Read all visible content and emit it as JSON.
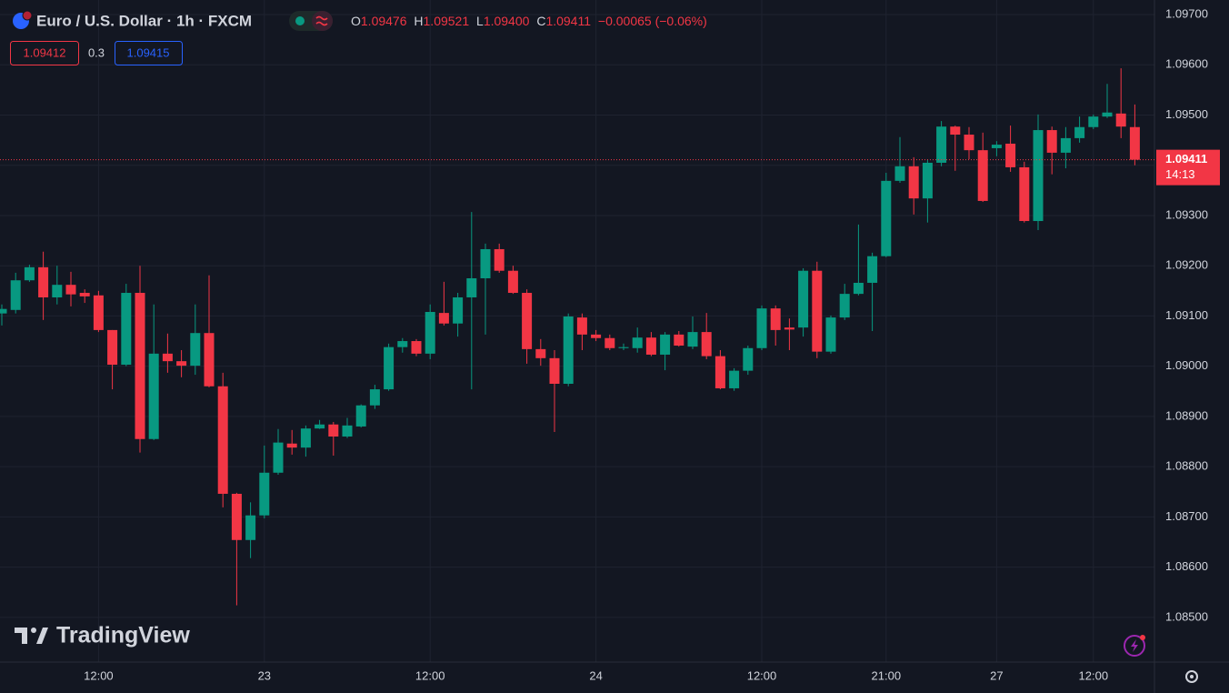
{
  "header": {
    "symbol": "Euro / U.S. Dollar · 1h · FXCM",
    "ohlc": [
      {
        "label": "O",
        "value": "1.09476"
      },
      {
        "label": "H",
        "value": "1.09521"
      },
      {
        "label": "L",
        "value": "1.09400"
      },
      {
        "label": "C",
        "value": "1.09411"
      }
    ],
    "change": "−0.00065 (−0.06%)"
  },
  "quote": {
    "bid": "1.09412",
    "spread": "0.3",
    "ask": "1.09415"
  },
  "watermark": "TradingView",
  "chart_data": {
    "type": "candlestick",
    "categories": [
      null,
      null,
      null,
      null,
      null,
      null,
      null,
      "12:00",
      null,
      null,
      null,
      null,
      null,
      null,
      null,
      null,
      null,
      null,
      null,
      "23",
      null,
      null,
      null,
      null,
      null,
      null,
      null,
      null,
      null,
      null,
      null,
      "12:00",
      null,
      null,
      null,
      null,
      null,
      null,
      null,
      null,
      null,
      null,
      null,
      "24",
      null,
      null,
      null,
      null,
      null,
      null,
      null,
      null,
      null,
      null,
      null,
      "12:00",
      null,
      null,
      null,
      null,
      null,
      null,
      null,
      null,
      "21:00",
      null,
      null,
      null,
      null,
      null,
      null,
      null,
      "27",
      null,
      null,
      null,
      null,
      null,
      null,
      "12:00",
      null,
      null,
      null
    ],
    "open": [
      1.09105,
      1.09112,
      1.09171,
      1.09197,
      1.09137,
      1.09162,
      1.09146,
      1.09141,
      1.09072,
      1.09003,
      1.09146,
      1.08855,
      1.09025,
      1.0901,
      1.09001,
      1.09066,
      1.0896,
      1.08746,
      1.08654,
      1.08703,
      1.08788,
      1.08846,
      1.08838,
      1.08876,
      1.08884,
      1.0886,
      1.0888,
      1.08922,
      1.08954,
      1.09038,
      1.0905,
      1.09025,
      1.09106,
      1.09085,
      1.09137,
      1.09175,
      1.09233,
      1.0919,
      1.09146,
      1.09034,
      1.09016,
      1.08965,
      1.09097,
      1.09063,
      1.09056,
      1.09036,
      1.09036,
      1.09057,
      1.09023,
      1.09063,
      1.09039,
      1.09068,
      1.0902,
      1.08956,
      1.08991,
      1.09036,
      1.09115,
      1.09077,
      1.09077,
      1.0919,
      1.09029,
      1.09097,
      1.09144,
      1.09166,
      1.09219,
      1.09369,
      1.09398,
      1.09334,
      1.09405,
      1.09477,
      1.09461,
      1.0943,
      1.09434,
      1.09443,
      1.09396,
      1.09289,
      1.0947,
      1.09425,
      1.09454,
      1.09476,
      1.09497,
      1.09503,
      1.09476
    ],
    "high": [
      1.09123,
      1.09186,
      1.09202,
      1.09228,
      1.092,
      1.09188,
      1.09153,
      1.0915,
      1.09072,
      1.09164,
      1.092,
      1.09123,
      1.09065,
      1.09032,
      1.09123,
      1.09181,
      1.08987,
      1.08748,
      1.08729,
      1.08842,
      1.08875,
      1.08873,
      1.08882,
      1.08893,
      1.08889,
      1.08897,
      1.08924,
      1.08963,
      1.09045,
      1.09056,
      1.09054,
      1.09123,
      1.09168,
      1.09146,
      1.09307,
      1.09244,
      1.09244,
      1.092,
      1.09153,
      1.09054,
      1.09032,
      1.09105,
      1.09105,
      1.09072,
      1.09063,
      1.09045,
      1.09077,
      1.09068,
      1.09068,
      1.0907,
      1.09099,
      1.09106,
      1.09032,
      1.08996,
      1.09041,
      1.09121,
      1.09121,
      1.09095,
      1.09195,
      1.09208,
      1.09101,
      1.09164,
      1.09282,
      1.09226,
      1.09385,
      1.09456,
      1.09416,
      1.09412,
      1.09488,
      1.09479,
      1.09476,
      1.09465,
      1.09448,
      1.09479,
      1.09407,
      1.09501,
      1.09477,
      1.09476,
      1.09497,
      1.09501,
      1.09562,
      1.09593,
      1.09521
    ],
    "low": [
      1.09081,
      1.09105,
      1.09168,
      1.09092,
      1.09123,
      1.09119,
      1.09126,
      1.09068,
      1.08954,
      1.09,
      1.08828,
      1.08853,
      1.08987,
      1.08978,
      1.08983,
      1.08958,
      1.08719,
      1.08524,
      1.08618,
      1.08697,
      1.08784,
      1.08824,
      1.0882,
      1.08875,
      1.08822,
      1.08857,
      1.08878,
      1.08915,
      1.08951,
      1.09027,
      1.0902,
      1.09014,
      1.09081,
      1.09059,
      1.08954,
      1.09063,
      1.09186,
      1.09144,
      1.09005,
      1.09001,
      1.08869,
      1.0896,
      1.09032,
      1.0905,
      1.09032,
      1.09032,
      1.09027,
      1.0902,
      1.08992,
      1.09039,
      1.09034,
      1.09014,
      1.08954,
      1.08951,
      1.08983,
      1.09032,
      1.09041,
      1.09032,
      1.09059,
      1.09016,
      1.09025,
      1.09092,
      1.09141,
      1.0907,
      1.09217,
      1.09365,
      1.09302,
      1.09286,
      1.09398,
      1.09389,
      1.09412,
      1.09327,
      1.09418,
      1.09387,
      1.09286,
      1.09271,
      1.09382,
      1.09394,
      1.09445,
      1.09472,
      1.09494,
      1.09454,
      1.094
    ],
    "close": [
      1.09114,
      1.09171,
      1.09197,
      1.09137,
      1.09162,
      1.09143,
      1.09139,
      1.09072,
      1.09003,
      1.09146,
      1.08855,
      1.09025,
      1.0901,
      1.09001,
      1.09066,
      1.0896,
      1.08746,
      1.08654,
      1.08703,
      1.08788,
      1.08848,
      1.08838,
      1.08876,
      1.08884,
      1.0886,
      1.08882,
      1.08922,
      1.08954,
      1.09038,
      1.0905,
      1.09025,
      1.09108,
      1.09085,
      1.09137,
      1.09175,
      1.09233,
      1.0919,
      1.09146,
      1.09034,
      1.09016,
      1.08965,
      1.09099,
      1.09063,
      1.09056,
      1.09036,
      1.09038,
      1.09057,
      1.09023,
      1.09063,
      1.09041,
      1.09068,
      1.0902,
      1.08956,
      1.08991,
      1.09036,
      1.09115,
      1.09072,
      1.09073,
      1.0919,
      1.09029,
      1.09097,
      1.09144,
      1.09166,
      1.09219,
      1.09369,
      1.09398,
      1.09334,
      1.09405,
      1.09477,
      1.09461,
      1.0943,
      1.09329,
      1.09441,
      1.09396,
      1.09289,
      1.0947,
      1.09425,
      1.09454,
      1.09476,
      1.09497,
      1.09505,
      1.09477,
      1.09411
    ],
    "up_color": "#089981",
    "down_color": "#f23645",
    "ylim": [
      1.08411,
      1.09729
    ],
    "yticks": [
      {
        "value": 1.085,
        "label": "1.08500"
      },
      {
        "value": 1.086,
        "label": "1.08600"
      },
      {
        "value": 1.087,
        "label": "1.08700"
      },
      {
        "value": 1.088,
        "label": "1.08800"
      },
      {
        "value": 1.089,
        "label": "1.08900"
      },
      {
        "value": 1.09,
        "label": "1.09000"
      },
      {
        "value": 1.091,
        "label": "1.09100"
      },
      {
        "value": 1.092,
        "label": "1.09200"
      },
      {
        "value": 1.093,
        "label": "1.09300"
      },
      {
        "value": 1.094,
        "label": "1.09400"
      },
      {
        "value": 1.095,
        "label": "1.09500"
      },
      {
        "value": 1.096,
        "label": "1.09600"
      },
      {
        "value": 1.097,
        "label": "1.09700"
      }
    ],
    "grid": true,
    "last_price": {
      "value": 1.09411,
      "label": "1.09411",
      "countdown": "14:13"
    }
  }
}
